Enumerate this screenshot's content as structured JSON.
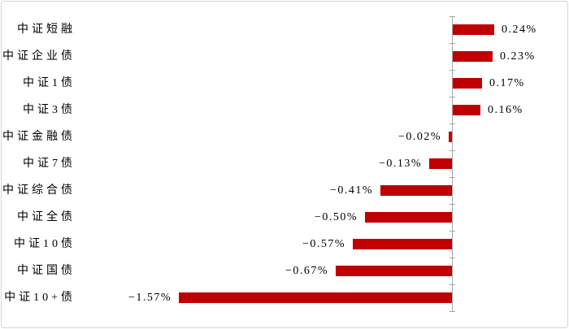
{
  "chart_data": {
    "type": "bar",
    "orientation": "horizontal",
    "title": "",
    "xlabel": "",
    "ylabel": "",
    "grid": false,
    "legend": false,
    "unit": "%",
    "bar_color": "#c00000",
    "axis_color": "#a6a6a6",
    "frame_border_color": "#d6d6d6",
    "text_color": "#000000",
    "categories": [
      "中证短融",
      "中证企业债",
      "中证1债",
      "中证3债",
      "中证金融债",
      "中证7债",
      "中证综合债",
      "中证全债",
      "中证10债",
      "中证国债",
      "中证10+债"
    ],
    "values": [
      0.24,
      0.23,
      0.17,
      0.16,
      -0.02,
      -0.13,
      -0.41,
      -0.5,
      -0.57,
      -0.67,
      -1.57
    ],
    "value_labels": [
      "0.24%",
      "0.23%",
      "0.17%",
      "0.16%",
      "−0.02%",
      "−0.13%",
      "−0.41%",
      "−0.50%",
      "−0.57%",
      "−0.67%",
      "−1.57%"
    ],
    "xlim": [
      -1.8,
      0.65
    ],
    "zero_axis": true,
    "tick_style": "cross"
  }
}
